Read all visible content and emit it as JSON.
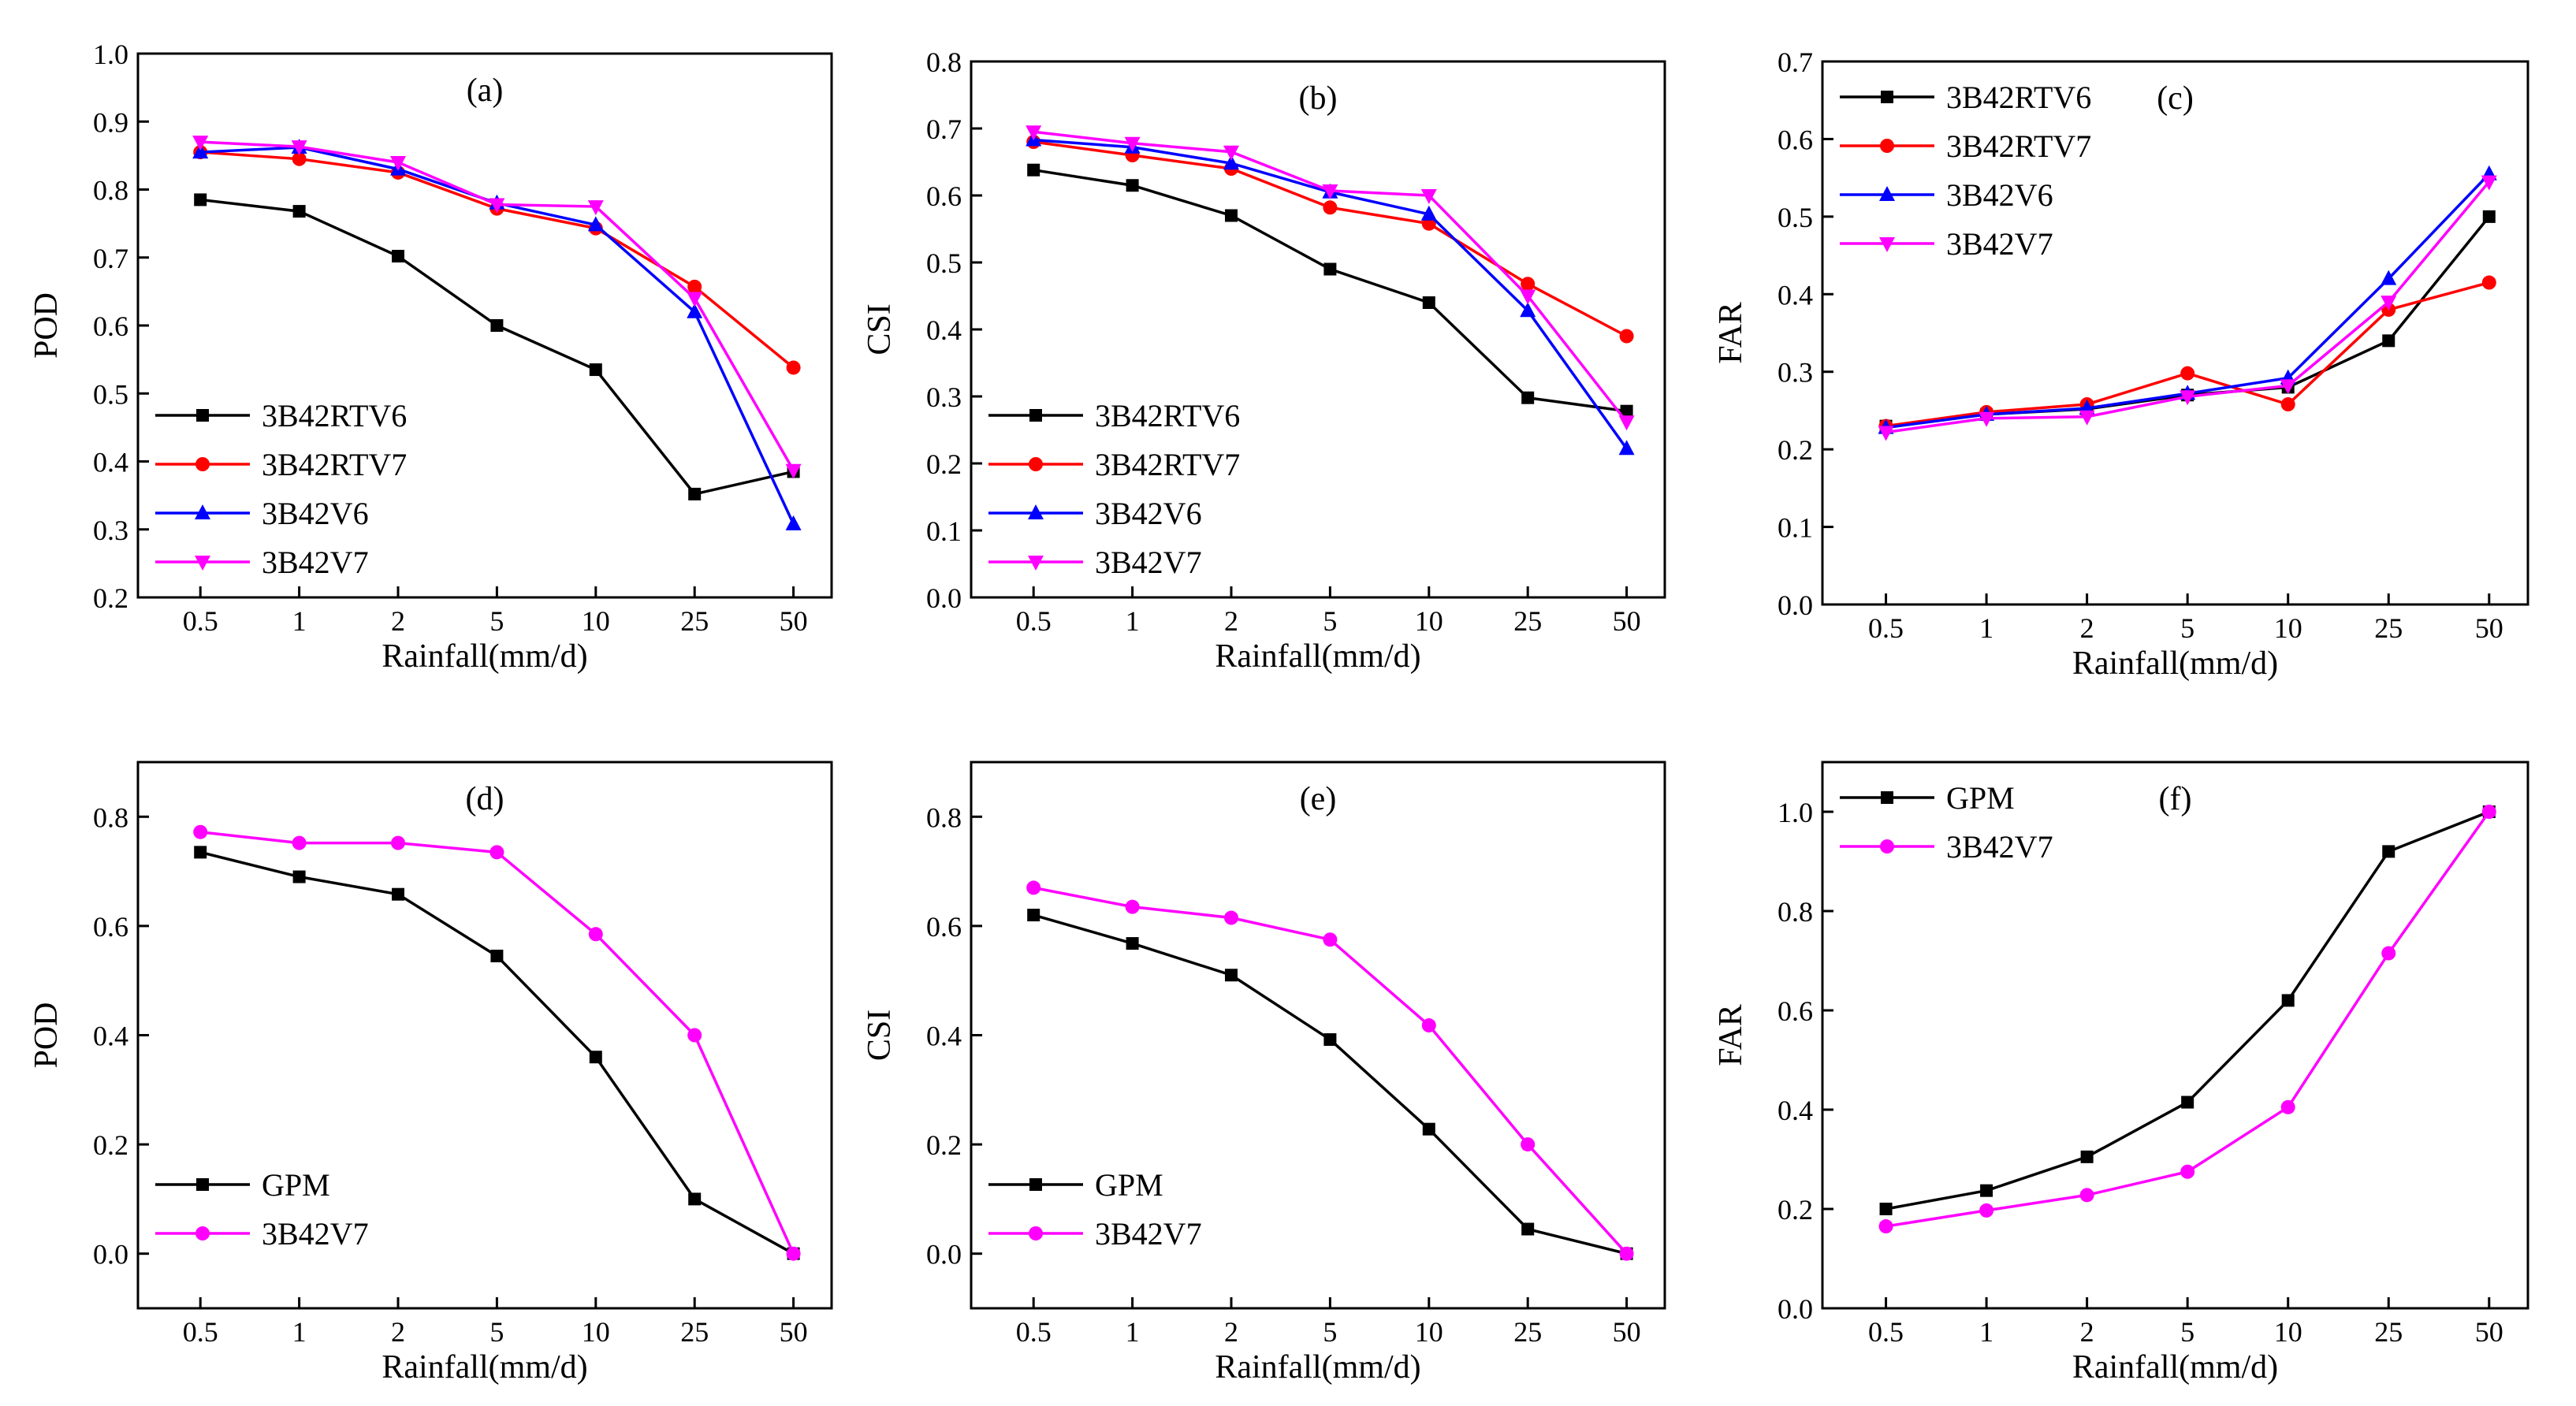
{
  "figure": {
    "categories": [
      "0.5",
      "1",
      "2",
      "5",
      "10",
      "25",
      "50"
    ]
  },
  "colors": {
    "3B42RTV6": "#000000",
    "3B42RTV7": "#ff0000",
    "3B42V6": "#0000ff",
    "3B42V7": "#ff00ff",
    "GPM": "#000000"
  },
  "chart_data": [
    {
      "id": "a",
      "type": "line",
      "title": "(a)",
      "xlabel": "Rainfall(mm/d)",
      "ylabel": "POD",
      "categories": [
        "0.5",
        "1",
        "2",
        "5",
        "10",
        "25",
        "50"
      ],
      "ylim": [
        0.2,
        1.0
      ],
      "yticks": [
        "0.2",
        "0.3",
        "0.4",
        "0.5",
        "0.6",
        "0.7",
        "0.8",
        "0.9",
        "1.0"
      ],
      "legend_position": "bottom-left",
      "series": [
        {
          "name": "3B42RTV6",
          "marker": "square",
          "values": [
            0.785,
            0.768,
            0.702,
            0.6,
            0.535,
            0.352,
            0.385
          ]
        },
        {
          "name": "3B42RTV7",
          "marker": "circle",
          "values": [
            0.855,
            0.845,
            0.825,
            0.772,
            0.743,
            0.657,
            0.538
          ]
        },
        {
          "name": "3B42V6",
          "marker": "triangle-up",
          "values": [
            0.855,
            0.862,
            0.83,
            0.78,
            0.748,
            0.62,
            0.308
          ]
        },
        {
          "name": "3B42V7",
          "marker": "triangle-down",
          "values": [
            0.87,
            0.863,
            0.84,
            0.778,
            0.775,
            0.64,
            0.387
          ]
        }
      ]
    },
    {
      "id": "b",
      "type": "line",
      "title": "(b)",
      "xlabel": "Rainfall(mm/d)",
      "ylabel": "CSI",
      "categories": [
        "0.5",
        "1",
        "2",
        "5",
        "10",
        "25",
        "50"
      ],
      "ylim": [
        0.0,
        0.8
      ],
      "yticks": [
        "0.0",
        "0.1",
        "0.2",
        "0.3",
        "0.4",
        "0.5",
        "0.6",
        "0.7",
        "0.8"
      ],
      "legend_position": "bottom-left",
      "series": [
        {
          "name": "3B42RTV6",
          "marker": "square",
          "values": [
            0.638,
            0.615,
            0.57,
            0.49,
            0.44,
            0.298,
            0.278
          ]
        },
        {
          "name": "3B42RTV7",
          "marker": "circle",
          "values": [
            0.68,
            0.66,
            0.64,
            0.582,
            0.558,
            0.468,
            0.39
          ]
        },
        {
          "name": "3B42V6",
          "marker": "triangle-up",
          "values": [
            0.683,
            0.672,
            0.648,
            0.605,
            0.572,
            0.428,
            0.222
          ]
        },
        {
          "name": "3B42V7",
          "marker": "triangle-down",
          "values": [
            0.695,
            0.678,
            0.665,
            0.607,
            0.6,
            0.45,
            0.262
          ]
        }
      ]
    },
    {
      "id": "c",
      "type": "line",
      "title": "(c)",
      "xlabel": "Rainfall(mm/d)",
      "ylabel": "FAR",
      "categories": [
        "0.5",
        "1",
        "2",
        "5",
        "10",
        "25",
        "50"
      ],
      "ylim": [
        0.0,
        0.7
      ],
      "yticks": [
        "0.0",
        "0.1",
        "0.2",
        "0.3",
        "0.4",
        "0.5",
        "0.6",
        "0.7"
      ],
      "legend_position": "top-left",
      "series": [
        {
          "name": "3B42RTV6",
          "marker": "square",
          "values": [
            0.23,
            0.245,
            0.252,
            0.27,
            0.28,
            0.34,
            0.5
          ]
        },
        {
          "name": "3B42RTV7",
          "marker": "circle",
          "values": [
            0.23,
            0.248,
            0.258,
            0.298,
            0.258,
            0.38,
            0.415
          ]
        },
        {
          "name": "3B42V6",
          "marker": "triangle-up",
          "values": [
            0.228,
            0.245,
            0.253,
            0.272,
            0.292,
            0.42,
            0.555
          ]
        },
        {
          "name": "3B42V7",
          "marker": "triangle-down",
          "values": [
            0.222,
            0.24,
            0.242,
            0.268,
            0.282,
            0.39,
            0.545
          ]
        }
      ]
    },
    {
      "id": "d",
      "type": "line",
      "title": "(d)",
      "xlabel": "Rainfall(mm/d)",
      "ylabel": "POD",
      "categories": [
        "0.5",
        "1",
        "2",
        "5",
        "10",
        "25",
        "50"
      ],
      "ylim": [
        -0.1,
        0.9
      ],
      "yticks": [
        "0.0",
        "0.2",
        "0.4",
        "0.6",
        "0.8"
      ],
      "legend_position": "bottom-left",
      "series": [
        {
          "name": "GPM",
          "marker": "square",
          "values": [
            0.735,
            0.69,
            0.658,
            0.545,
            0.36,
            0.1,
            0.0
          ]
        },
        {
          "name": "3B42V7",
          "marker": "circle",
          "values": [
            0.772,
            0.752,
            0.752,
            0.735,
            0.585,
            0.4,
            0.0
          ]
        }
      ]
    },
    {
      "id": "e",
      "type": "line",
      "title": "(e)",
      "xlabel": "Rainfall(mm/d)",
      "ylabel": "CSI",
      "categories": [
        "0.5",
        "1",
        "2",
        "5",
        "10",
        "25",
        "50"
      ],
      "ylim": [
        -0.1,
        0.9
      ],
      "yticks": [
        "0.0",
        "0.2",
        "0.4",
        "0.6",
        "0.8"
      ],
      "legend_position": "bottom-left",
      "series": [
        {
          "name": "GPM",
          "marker": "square",
          "values": [
            0.62,
            0.568,
            0.51,
            0.392,
            0.228,
            0.045,
            0.0
          ]
        },
        {
          "name": "3B42V7",
          "marker": "circle",
          "values": [
            0.67,
            0.635,
            0.615,
            0.575,
            0.418,
            0.2,
            0.0
          ]
        }
      ]
    },
    {
      "id": "f",
      "type": "line",
      "title": "(f)",
      "xlabel": "Rainfall(mm/d)",
      "ylabel": "FAR",
      "categories": [
        "0.5",
        "1",
        "2",
        "5",
        "10",
        "25",
        "50"
      ],
      "ylim": [
        0.0,
        1.1
      ],
      "yticks": [
        "0.0",
        "0.2",
        "0.4",
        "0.6",
        "0.8",
        "1.0"
      ],
      "legend_position": "top-left",
      "series": [
        {
          "name": "GPM",
          "marker": "square",
          "values": [
            0.2,
            0.237,
            0.305,
            0.415,
            0.62,
            0.92,
            1.0
          ]
        },
        {
          "name": "3B42V7",
          "marker": "circle",
          "values": [
            0.165,
            0.197,
            0.228,
            0.275,
            0.405,
            0.715,
            1.0
          ]
        }
      ]
    }
  ]
}
